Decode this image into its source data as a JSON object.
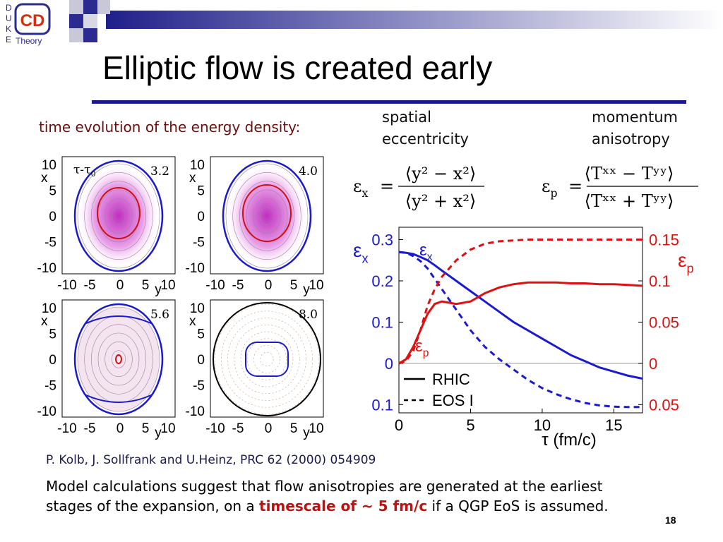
{
  "header": {
    "title": "Elliptic flow is created early",
    "logo": {
      "letters": [
        "D",
        "U",
        "K",
        "E"
      ],
      "mark": "CD",
      "word": "Theory"
    }
  },
  "left_heading": "time evolution of the energy density:",
  "panels": {
    "tau_label": "τ-τ",
    "tau_sub": "0",
    "times": [
      "3.2",
      "4.0",
      "5.6",
      "8.0"
    ],
    "yticks": [
      "10",
      "5",
      "0",
      "-5",
      "-10"
    ],
    "xticks": [
      "-10",
      "-5",
      "0",
      "5",
      "10"
    ],
    "x_label": "x",
    "y_label": "y"
  },
  "columns": [
    {
      "heading": [
        "spatial",
        "eccentricity"
      ],
      "formula": {
        "symbol": "ε",
        "sub": "x",
        "equals": "=",
        "num": "⟨y² − x²⟩",
        "den": "⟨y² + x²⟩"
      }
    },
    {
      "heading": [
        "momentum",
        "anisotropy"
      ],
      "formula": {
        "symbol": "ε",
        "sub": "p",
        "equals": "=",
        "num": "⟨Tˣˣ − Tʸʸ⟩",
        "den": "⟨Tˣˣ + Tʸʸ⟩"
      }
    }
  ],
  "chart_data": {
    "type": "line",
    "x": [
      0,
      0.5,
      1,
      1.5,
      2,
      2.5,
      3,
      4,
      5,
      6,
      7,
      8,
      9,
      10,
      11,
      12,
      13,
      14,
      15,
      16,
      17
    ],
    "xlim": [
      0,
      17
    ],
    "xticks": [
      0,
      5,
      10,
      15
    ],
    "xlabel": "τ (fm/c)",
    "ylim": [
      -0.12,
      0.33
    ],
    "yticks": [
      0.3,
      0.2,
      0.1,
      0,
      {
        "value": -0.1,
        "label": "0.1"
      }
    ],
    "y2lim": [
      -0.06,
      0.165
    ],
    "y2ticks": [
      0.15,
      0.1,
      0.05,
      0,
      {
        "value": -0.05,
        "label": "0.05"
      }
    ],
    "ylabel": {
      "symbol": "ε",
      "sub": "x"
    },
    "y2label": {
      "symbol": "ε",
      "sub": "p"
    },
    "zero_line": true,
    "annotations": [
      {
        "symbol": "ε",
        "sub": "x"
      },
      {
        "symbol": "ε",
        "sub": "p"
      }
    ],
    "series": [
      {
        "name": "RHIC",
        "color": "#1a1ad0",
        "dash": "solid",
        "axis": "y",
        "values": [
          0.27,
          0.268,
          0.265,
          0.258,
          0.25,
          0.238,
          0.225,
          0.2,
          0.175,
          0.15,
          0.125,
          0.1,
          0.08,
          0.06,
          0.04,
          0.02,
          0.005,
          -0.01,
          -0.02,
          -0.03,
          -0.037
        ]
      },
      {
        "name": "EOS I",
        "color": "#1a1ad0",
        "dash": "dashed",
        "axis": "y",
        "values": [
          0.27,
          0.268,
          0.26,
          0.248,
          0.23,
          0.205,
          0.18,
          0.13,
          0.08,
          0.04,
          0.01,
          -0.015,
          -0.04,
          -0.06,
          -0.075,
          -0.087,
          -0.096,
          -0.102,
          -0.105,
          -0.106,
          -0.106
        ]
      },
      {
        "name": "RHIC",
        "color": "#e01010",
        "dash": "solid",
        "axis": "y2",
        "values": [
          0,
          0.005,
          0.02,
          0.04,
          0.06,
          0.072,
          0.075,
          0.072,
          0.075,
          0.085,
          0.092,
          0.096,
          0.098,
          0.098,
          0.098,
          0.097,
          0.097,
          0.096,
          0.096,
          0.095,
          0.094
        ]
      },
      {
        "name": "EOS I",
        "color": "#e01010",
        "dash": "dashed",
        "axis": "y2",
        "values": [
          0,
          0.003,
          0.015,
          0.04,
          0.07,
          0.09,
          0.105,
          0.125,
          0.138,
          0.145,
          0.148,
          0.149,
          0.15,
          0.15,
          0.15,
          0.15,
          0.15,
          0.15,
          0.15,
          0.15,
          0.15
        ]
      }
    ]
  },
  "citation": "P. Kolb, J. Sollfrank and U.Heinz, PRC 62 (2000) 054909",
  "body": {
    "line1": "Model calculations suggest that flow anisotropies are generated at the earliest",
    "line2": [
      "stages of the expansion, on a ",
      "timescale of ~ 5 fm/c",
      " if a QGP EoS is assumed."
    ]
  },
  "page_number": "18"
}
